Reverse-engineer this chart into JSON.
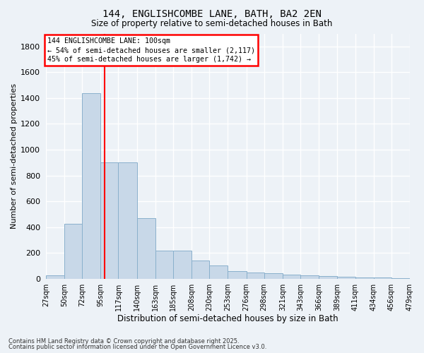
{
  "title1": "144, ENGLISHCOMBE LANE, BATH, BA2 2EN",
  "title2": "Size of property relative to semi-detached houses in Bath",
  "xlabel": "Distribution of semi-detached houses by size in Bath",
  "ylabel": "Number of semi-detached properties",
  "bar_color": "#c8d8e8",
  "bar_edgecolor": "#8ab0cc",
  "background_color": "#edf2f7",
  "grid_color": "#ffffff",
  "red_line_x": 100,
  "annotation_line1": "144 ENGLISHCOMBE LANE: 100sqm",
  "annotation_line2": "← 54% of semi-detached houses are smaller (2,117)",
  "annotation_line3": "45% of semi-detached houses are larger (1,742) →",
  "footnote1": "Contains HM Land Registry data © Crown copyright and database right 2025.",
  "footnote2": "Contains public sector information licensed under the Open Government Licence v3.0.",
  "bin_edges": [
    27,
    50,
    72,
    95,
    117,
    140,
    163,
    185,
    208,
    230,
    253,
    276,
    298,
    321,
    343,
    366,
    389,
    411,
    434,
    456,
    479
  ],
  "bar_heights": [
    28,
    425,
    1435,
    900,
    900,
    470,
    220,
    220,
    143,
    100,
    58,
    45,
    43,
    30,
    28,
    18,
    14,
    12,
    8,
    5
  ],
  "ylim": [
    0,
    1900
  ],
  "yticks": [
    0,
    200,
    400,
    600,
    800,
    1000,
    1200,
    1400,
    1600,
    1800
  ]
}
